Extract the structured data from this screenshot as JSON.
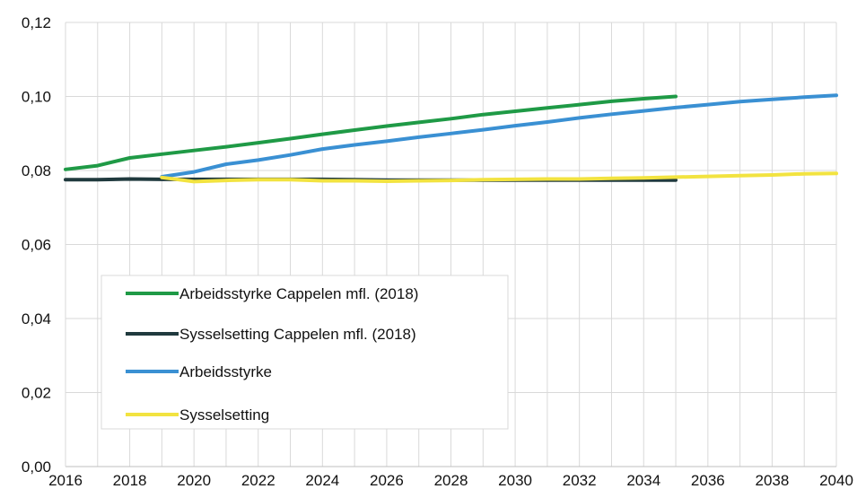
{
  "chart_data": {
    "type": "line",
    "title": "",
    "xlabel": "",
    "ylabel": "",
    "xlim": [
      2016,
      2040
    ],
    "ylim": [
      0,
      0.12
    ],
    "x_ticks": [
      "2016",
      "2018",
      "2020",
      "2022",
      "2024",
      "2026",
      "2028",
      "2030",
      "2032",
      "2034",
      "2036",
      "2038",
      "2040"
    ],
    "y_ticks": [
      "0,00",
      "0,02",
      "0,04",
      "0,06",
      "0,08",
      "0,10",
      "0,12"
    ],
    "grid": "vertical and horizontal",
    "legend_position": "lower-left inside",
    "series": [
      {
        "name": "Arbeidsstyrke Cappelen mfl. (2018)",
        "color": "#1f9a46",
        "x": [
          2016,
          2017,
          2018,
          2019,
          2020,
          2021,
          2022,
          2023,
          2024,
          2025,
          2026,
          2027,
          2028,
          2029,
          2030,
          2031,
          2032,
          2033,
          2034,
          2035
        ],
        "values": [
          0.0803,
          0.0813,
          0.0834,
          0.0844,
          0.0854,
          0.0864,
          0.0875,
          0.0886,
          0.0898,
          0.0909,
          0.092,
          0.093,
          0.094,
          0.0951,
          0.096,
          0.0969,
          0.0978,
          0.0987,
          0.0994,
          0.1
        ]
      },
      {
        "name": "Sysselsetting Cappelen mfl. (2018)",
        "color": "#203a3e",
        "x": [
          2016,
          2017,
          2018,
          2019,
          2020,
          2021,
          2022,
          2023,
          2024,
          2025,
          2026,
          2027,
          2028,
          2029,
          2030,
          2031,
          2032,
          2033,
          2034,
          2035
        ],
        "values": [
          0.0775,
          0.0775,
          0.0777,
          0.0776,
          0.0776,
          0.0776,
          0.0776,
          0.0776,
          0.0776,
          0.0775,
          0.0774,
          0.0774,
          0.0774,
          0.0774,
          0.0774,
          0.0774,
          0.0774,
          0.0774,
          0.0774,
          0.0774
        ]
      },
      {
        "name": "Arbeidsstyrke",
        "color": "#3a90d3",
        "x": [
          2019,
          2020,
          2021,
          2022,
          2023,
          2024,
          2025,
          2026,
          2027,
          2028,
          2029,
          2030,
          2031,
          2032,
          2033,
          2034,
          2035,
          2036,
          2037,
          2038,
          2039,
          2040
        ],
        "values": [
          0.0783,
          0.0796,
          0.0817,
          0.0828,
          0.0842,
          0.0858,
          0.0869,
          0.0879,
          0.089,
          0.09,
          0.091,
          0.0921,
          0.0931,
          0.0942,
          0.0952,
          0.0961,
          0.097,
          0.0978,
          0.0986,
          0.0992,
          0.0998,
          0.1003
        ]
      },
      {
        "name": "Sysselsetting",
        "color": "#f2e340",
        "x": [
          2019,
          2020,
          2021,
          2022,
          2023,
          2024,
          2025,
          2026,
          2027,
          2028,
          2029,
          2030,
          2031,
          2032,
          2033,
          2034,
          2035,
          2036,
          2037,
          2038,
          2039,
          2040
        ],
        "values": [
          0.0781,
          0.077,
          0.0773,
          0.0775,
          0.0775,
          0.0772,
          0.0772,
          0.0771,
          0.0772,
          0.0773,
          0.0775,
          0.0776,
          0.0777,
          0.0777,
          0.0779,
          0.078,
          0.0782,
          0.0784,
          0.0786,
          0.0788,
          0.0791,
          0.0792
        ]
      }
    ]
  }
}
